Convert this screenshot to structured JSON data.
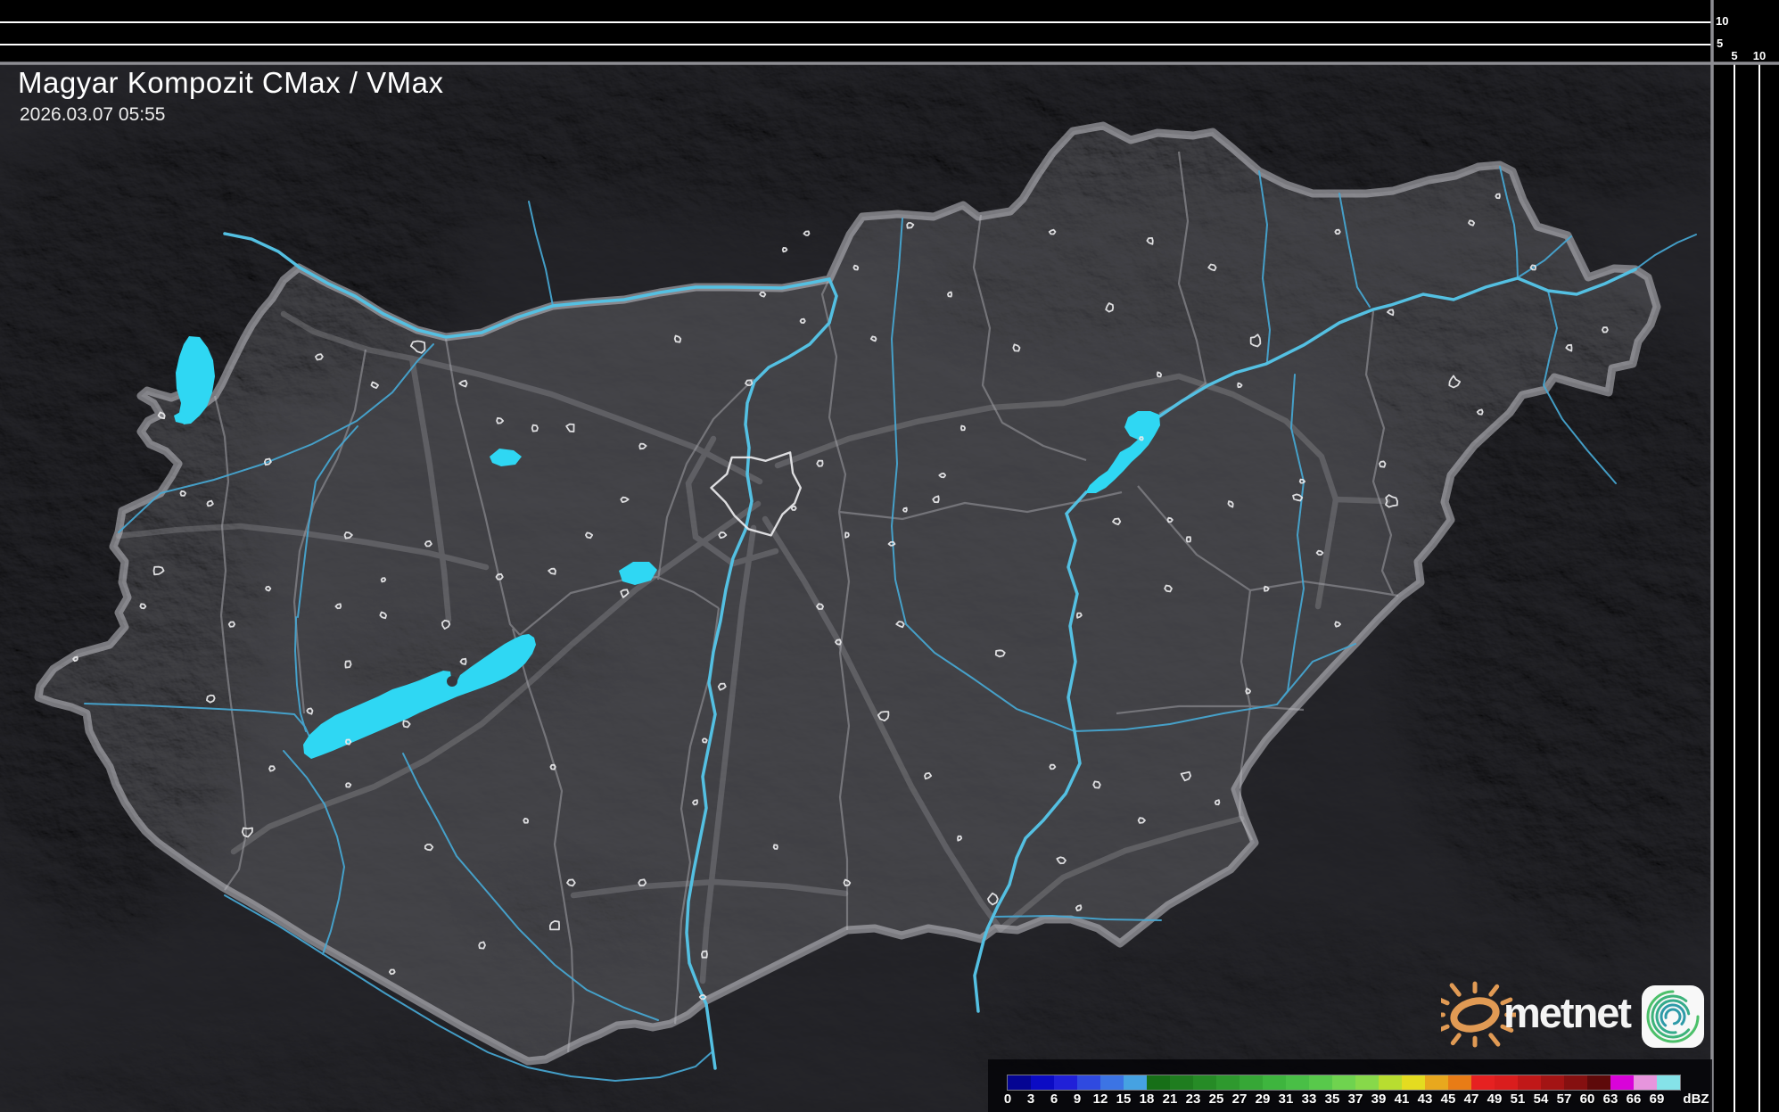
{
  "header": {
    "title": "Magyar Kompozit CMax / VMax",
    "timestamp": "2026.03.07 05:55"
  },
  "side_panels": {
    "top_height_scale_km": [
      "10",
      "5"
    ],
    "right_height_scale_km": [
      "5",
      "10"
    ]
  },
  "colorbar": {
    "unit": "dBZ",
    "ticks": [
      "0",
      "3",
      "6",
      "9",
      "12",
      "15",
      "18",
      "21",
      "23",
      "25",
      "27",
      "29",
      "31",
      "33",
      "35",
      "37",
      "39",
      "41",
      "43",
      "45",
      "47",
      "49",
      "51",
      "54",
      "57",
      "60",
      "63",
      "66",
      "69"
    ],
    "colors": [
      "#050593",
      "#0b0bc4",
      "#2020d8",
      "#2f4ae0",
      "#3c74e4",
      "#46a2e2",
      "#176f17",
      "#1f7d1f",
      "#268b26",
      "#2e992e",
      "#36a736",
      "#3eb53e",
      "#49bf46",
      "#58c94b",
      "#6fd34f",
      "#87d94a",
      "#b8dd30",
      "#e4dc20",
      "#e8a81e",
      "#e87c16",
      "#e62121",
      "#da1d1d",
      "#c01818",
      "#a31414",
      "#851010",
      "#5e0a0a",
      "#d903d9",
      "#e795dd",
      "#85e2e8"
    ]
  },
  "branding": {
    "wordmark": "metnet",
    "sun_color": "#e09a54",
    "swirl_colors": [
      "#4cc06a",
      "#35ab7c",
      "#2e9aa8"
    ]
  },
  "map_palette": {
    "land": "#3a3a40",
    "water": "#2fd7f3",
    "river": "#46a8d4",
    "country_border": "#95959b",
    "county_border": "#74747a",
    "city_outline": "#ebebed"
  }
}
